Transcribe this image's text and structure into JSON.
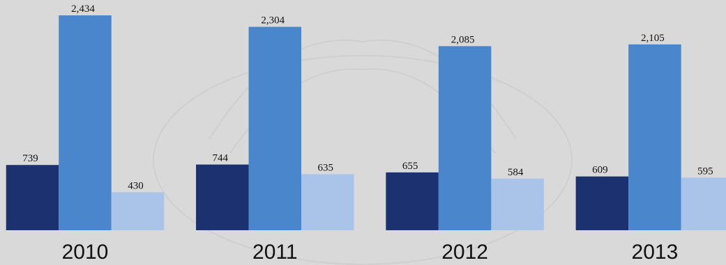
{
  "chart_data": {
    "type": "bar",
    "categories": [
      "2010",
      "2011",
      "2012",
      "2013"
    ],
    "series": [
      {
        "color": "#1c3270",
        "values": [
          739,
          744,
          655,
          609
        ]
      },
      {
        "color": "#4a86cc",
        "values": [
          2434,
          2304,
          2085,
          2105
        ],
        "value_labels": [
          "2,434",
          "2,304",
          "2,085",
          "2,105"
        ]
      },
      {
        "color": "#a9c4e8",
        "values": [
          430,
          635,
          584,
          595
        ]
      }
    ],
    "ylim": [
      0,
      2600
    ]
  }
}
